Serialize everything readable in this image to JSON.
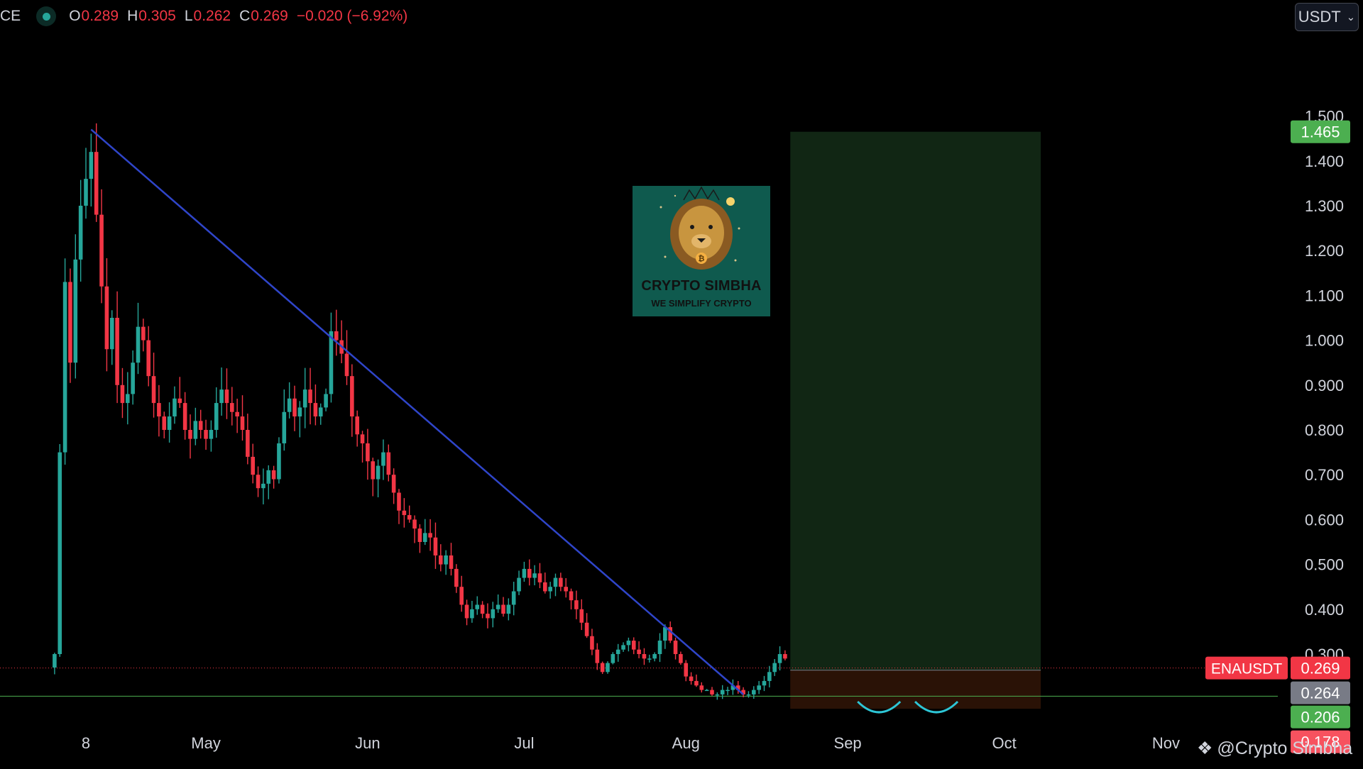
{
  "header": {
    "symbol_fragment": "CE",
    "ohlc": [
      {
        "k": "O",
        "v": "0.289"
      },
      {
        "k": "H",
        "v": "0.305"
      },
      {
        "k": "L",
        "v": "0.262"
      },
      {
        "k": "C",
        "v": "0.269"
      }
    ],
    "change": "−0.020 (−6.92%)"
  },
  "currency_selector": {
    "label": "USDT"
  },
  "watermark": {
    "text": "@Crypto Simbha"
  },
  "logo": {
    "title": "CRYPTO SIMBHA",
    "subtitle": "WE SIMPLIFY CRYPTO"
  },
  "colors": {
    "up": "#26a69a",
    "down": "#f23645",
    "trendline": "#2f45c9",
    "target_zone": "#112614",
    "stop_zone": "#2a1206"
  },
  "chart_data": {
    "type": "candlestick",
    "symbol": "ENAUSDT",
    "y_ticks": [
      "1.500",
      "1.400",
      "1.300",
      "1.200",
      "1.100",
      "1.000",
      "0.900",
      "0.800",
      "0.700",
      "0.600",
      "0.500",
      "0.400",
      "0.300"
    ],
    "ylim": [
      0.0,
      1.55
    ],
    "x_ticks": [
      {
        "label": "8",
        "date": "2024-04-08"
      },
      {
        "label": "May",
        "date": "2024-05-01"
      },
      {
        "label": "Jun",
        "date": "2024-06-01"
      },
      {
        "label": "Jul",
        "date": "2024-07-01"
      },
      {
        "label": "Aug",
        "date": "2024-08-01"
      },
      {
        "label": "Sep",
        "date": "2024-09-01"
      },
      {
        "label": "Oct",
        "date": "2024-10-01"
      },
      {
        "label": "Nov",
        "date": "2024-11-01"
      }
    ],
    "close_path": [
      [
        "2024-04-02",
        0.3
      ],
      [
        "2024-04-03",
        0.75
      ],
      [
        "2024-04-04",
        1.13
      ],
      [
        "2024-04-05",
        0.95
      ],
      [
        "2024-04-06",
        1.18
      ],
      [
        "2024-04-07",
        1.3
      ],
      [
        "2024-04-08",
        1.36
      ],
      [
        "2024-04-09",
        1.42
      ],
      [
        "2024-04-10",
        1.28
      ],
      [
        "2024-04-11",
        1.12
      ],
      [
        "2024-04-12",
        0.98
      ],
      [
        "2024-04-13",
        1.05
      ],
      [
        "2024-04-14",
        0.9
      ],
      [
        "2024-04-15",
        0.86
      ],
      [
        "2024-04-16",
        0.88
      ],
      [
        "2024-04-17",
        0.95
      ],
      [
        "2024-04-18",
        1.03
      ],
      [
        "2024-04-19",
        1.0
      ],
      [
        "2024-04-20",
        0.92
      ],
      [
        "2024-04-21",
        0.86
      ],
      [
        "2024-04-22",
        0.83
      ],
      [
        "2024-04-23",
        0.8
      ],
      [
        "2024-04-24",
        0.83
      ],
      [
        "2024-04-25",
        0.87
      ],
      [
        "2024-04-26",
        0.86
      ],
      [
        "2024-04-27",
        0.8
      ],
      [
        "2024-04-28",
        0.78
      ],
      [
        "2024-04-29",
        0.82
      ],
      [
        "2024-04-30",
        0.8
      ],
      [
        "2024-05-01",
        0.78
      ],
      [
        "2024-05-02",
        0.8
      ],
      [
        "2024-05-03",
        0.86
      ],
      [
        "2024-05-04",
        0.89
      ],
      [
        "2024-05-05",
        0.86
      ],
      [
        "2024-05-06",
        0.84
      ],
      [
        "2024-05-07",
        0.83
      ],
      [
        "2024-05-08",
        0.8
      ],
      [
        "2024-05-09",
        0.74
      ],
      [
        "2024-05-10",
        0.7
      ],
      [
        "2024-05-11",
        0.67
      ],
      [
        "2024-05-12",
        0.68
      ],
      [
        "2024-05-13",
        0.71
      ],
      [
        "2024-05-14",
        0.69
      ],
      [
        "2024-05-15",
        0.77
      ],
      [
        "2024-05-16",
        0.84
      ],
      [
        "2024-05-17",
        0.87
      ],
      [
        "2024-05-18",
        0.83
      ],
      [
        "2024-05-19",
        0.85
      ],
      [
        "2024-05-20",
        0.89
      ],
      [
        "2024-05-21",
        0.86
      ],
      [
        "2024-05-22",
        0.83
      ],
      [
        "2024-05-23",
        0.85
      ],
      [
        "2024-05-24",
        0.88
      ],
      [
        "2024-05-25",
        1.02
      ],
      [
        "2024-05-26",
        1.0
      ],
      [
        "2024-05-27",
        0.97
      ],
      [
        "2024-05-28",
        0.92
      ],
      [
        "2024-05-29",
        0.83
      ],
      [
        "2024-05-30",
        0.79
      ],
      [
        "2024-05-31",
        0.77
      ],
      [
        "2024-06-01",
        0.73
      ],
      [
        "2024-06-02",
        0.69
      ],
      [
        "2024-06-03",
        0.72
      ],
      [
        "2024-06-04",
        0.75
      ],
      [
        "2024-06-05",
        0.7
      ],
      [
        "2024-06-06",
        0.66
      ],
      [
        "2024-06-07",
        0.62
      ],
      [
        "2024-06-08",
        0.61
      ],
      [
        "2024-06-09",
        0.6
      ],
      [
        "2024-06-10",
        0.58
      ],
      [
        "2024-06-11",
        0.55
      ],
      [
        "2024-06-12",
        0.57
      ],
      [
        "2024-06-13",
        0.56
      ],
      [
        "2024-06-14",
        0.52
      ],
      [
        "2024-06-15",
        0.5
      ],
      [
        "2024-06-16",
        0.52
      ],
      [
        "2024-06-17",
        0.49
      ],
      [
        "2024-06-18",
        0.45
      ],
      [
        "2024-06-19",
        0.41
      ],
      [
        "2024-06-20",
        0.38
      ],
      [
        "2024-06-21",
        0.4
      ],
      [
        "2024-06-22",
        0.41
      ],
      [
        "2024-06-23",
        0.39
      ],
      [
        "2024-06-24",
        0.38
      ],
      [
        "2024-06-25",
        0.4
      ],
      [
        "2024-06-26",
        0.41
      ],
      [
        "2024-06-27",
        0.39
      ],
      [
        "2024-06-28",
        0.41
      ],
      [
        "2024-06-29",
        0.44
      ],
      [
        "2024-06-30",
        0.47
      ],
      [
        "2024-07-01",
        0.49
      ],
      [
        "2024-07-02",
        0.47
      ],
      [
        "2024-07-03",
        0.48
      ],
      [
        "2024-07-04",
        0.46
      ],
      [
        "2024-07-05",
        0.44
      ],
      [
        "2024-07-06",
        0.45
      ],
      [
        "2024-07-07",
        0.47
      ],
      [
        "2024-07-08",
        0.45
      ],
      [
        "2024-07-09",
        0.44
      ],
      [
        "2024-07-10",
        0.42
      ],
      [
        "2024-07-11",
        0.4
      ],
      [
        "2024-07-12",
        0.37
      ],
      [
        "2024-07-13",
        0.34
      ],
      [
        "2024-07-14",
        0.31
      ],
      [
        "2024-07-15",
        0.28
      ],
      [
        "2024-07-16",
        0.26
      ],
      [
        "2024-07-17",
        0.28
      ],
      [
        "2024-07-18",
        0.3
      ],
      [
        "2024-07-19",
        0.31
      ],
      [
        "2024-07-20",
        0.32
      ],
      [
        "2024-07-21",
        0.33
      ],
      [
        "2024-07-22",
        0.31
      ],
      [
        "2024-07-23",
        0.3
      ],
      [
        "2024-07-24",
        0.29
      ],
      [
        "2024-07-25",
        0.29
      ],
      [
        "2024-07-26",
        0.3
      ],
      [
        "2024-07-27",
        0.33
      ],
      [
        "2024-07-28",
        0.36
      ],
      [
        "2024-07-29",
        0.33
      ],
      [
        "2024-07-30",
        0.3
      ],
      [
        "2024-07-31",
        0.28
      ],
      [
        "2024-08-01",
        0.25
      ],
      [
        "2024-08-02",
        0.24
      ],
      [
        "2024-08-03",
        0.23
      ],
      [
        "2024-08-04",
        0.22
      ],
      [
        "2024-08-05",
        0.22
      ],
      [
        "2024-08-06",
        0.21
      ],
      [
        "2024-08-07",
        0.21
      ],
      [
        "2024-08-08",
        0.22
      ],
      [
        "2024-08-09",
        0.22
      ],
      [
        "2024-08-10",
        0.23
      ],
      [
        "2024-08-11",
        0.22
      ],
      [
        "2024-08-12",
        0.21
      ],
      [
        "2024-08-13",
        0.21
      ],
      [
        "2024-08-14",
        0.22
      ],
      [
        "2024-08-15",
        0.23
      ],
      [
        "2024-08-16",
        0.24
      ],
      [
        "2024-08-17",
        0.26
      ],
      [
        "2024-08-18",
        0.28
      ],
      [
        "2024-08-19",
        0.3
      ],
      [
        "2024-08-20",
        0.29
      ]
    ],
    "trendline": {
      "start": [
        "2024-04-09",
        1.47
      ],
      "end": [
        "2024-08-12",
        0.21
      ]
    },
    "position": {
      "entry": 0.264,
      "target": 1.465,
      "stop": 0.178,
      "start": "2024-08-21",
      "end": "2024-10-08"
    },
    "last_price_label": {
      "symbol": "ENAUSDT",
      "value": "0.269"
    },
    "price_labels": [
      {
        "value": "1.465",
        "color": "#4caf50"
      },
      {
        "value": "0.264",
        "color": "#787b86"
      },
      {
        "value": "0.206",
        "color": "#4caf50"
      },
      {
        "value": "0.178",
        "color": "#f7525f"
      }
    ],
    "horizontal_lines": [
      0.264,
      0.206
    ]
  }
}
